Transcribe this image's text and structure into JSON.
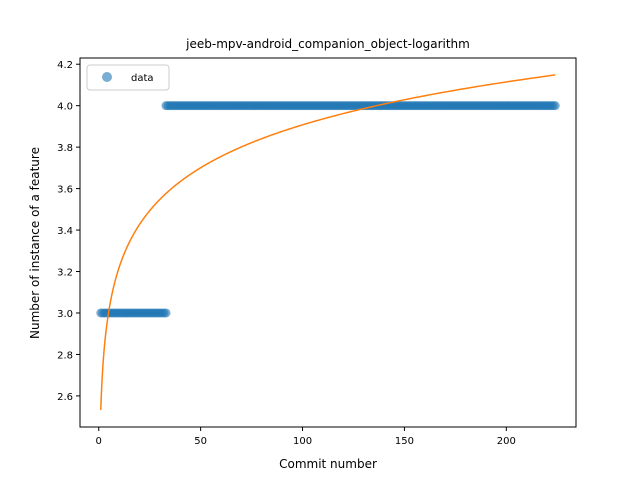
{
  "chart_data": {
    "type": "scatter",
    "title": "jeeb-mpv-android_companion_object-logarithm",
    "xlabel": "Commit number",
    "ylabel": "Number of instance of a feature",
    "xlim": [
      -9.2,
      234.2
    ],
    "ylim": [
      2.45,
      4.23
    ],
    "xticks": [
      0,
      50,
      100,
      150,
      200
    ],
    "yticks": [
      2.6,
      2.8,
      3.0,
      3.2,
      3.4,
      3.6,
      3.8,
      4.0,
      4.2
    ],
    "ytick_labels": [
      "2.6",
      "2.8",
      "3.0",
      "3.2",
      "3.4",
      "3.6",
      "3.8",
      "4.0",
      "4.2"
    ],
    "grid": false,
    "legend": {
      "position": "top-left",
      "entries": [
        "data"
      ]
    },
    "colors": {
      "data": "#1f77b4",
      "fit": "#ff7f0e"
    },
    "series": [
      {
        "name": "data",
        "kind": "scatter",
        "segments": [
          {
            "x_start": 1,
            "x_end": 33,
            "y": 3.0
          },
          {
            "x_start": 33,
            "x_end": 224,
            "y": 4.0
          }
        ]
      },
      {
        "kind": "line",
        "model": "logarithmic",
        "coefficients": {
          "a": 2.5324,
          "b": 0.2986
        },
        "x_range": [
          1,
          224
        ]
      }
    ]
  }
}
